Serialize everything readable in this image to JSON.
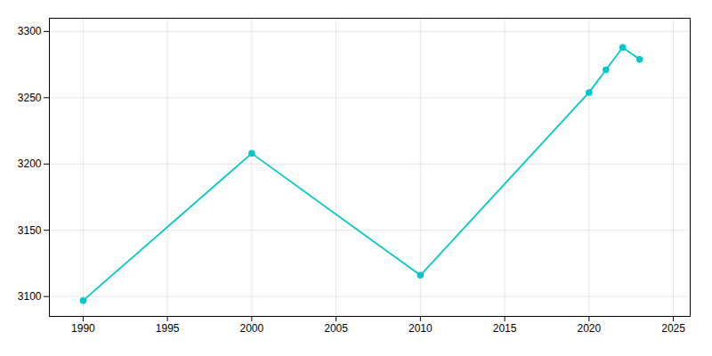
{
  "chart_data": {
    "type": "line",
    "x": [
      1990,
      2000,
      2010,
      2020,
      2021,
      2022,
      2023
    ],
    "values": [
      3097,
      3208,
      3116,
      3254,
      3271,
      3288,
      3279
    ],
    "color": "#00c8c8",
    "marker": "circle",
    "xlim": [
      1988,
      2026
    ],
    "ylim": [
      3085,
      3310
    ],
    "xticks": [
      1990,
      1995,
      2000,
      2005,
      2010,
      2015,
      2020,
      2025
    ],
    "yticks": [
      3100,
      3150,
      3200,
      3250,
      3300
    ],
    "grid": true
  }
}
